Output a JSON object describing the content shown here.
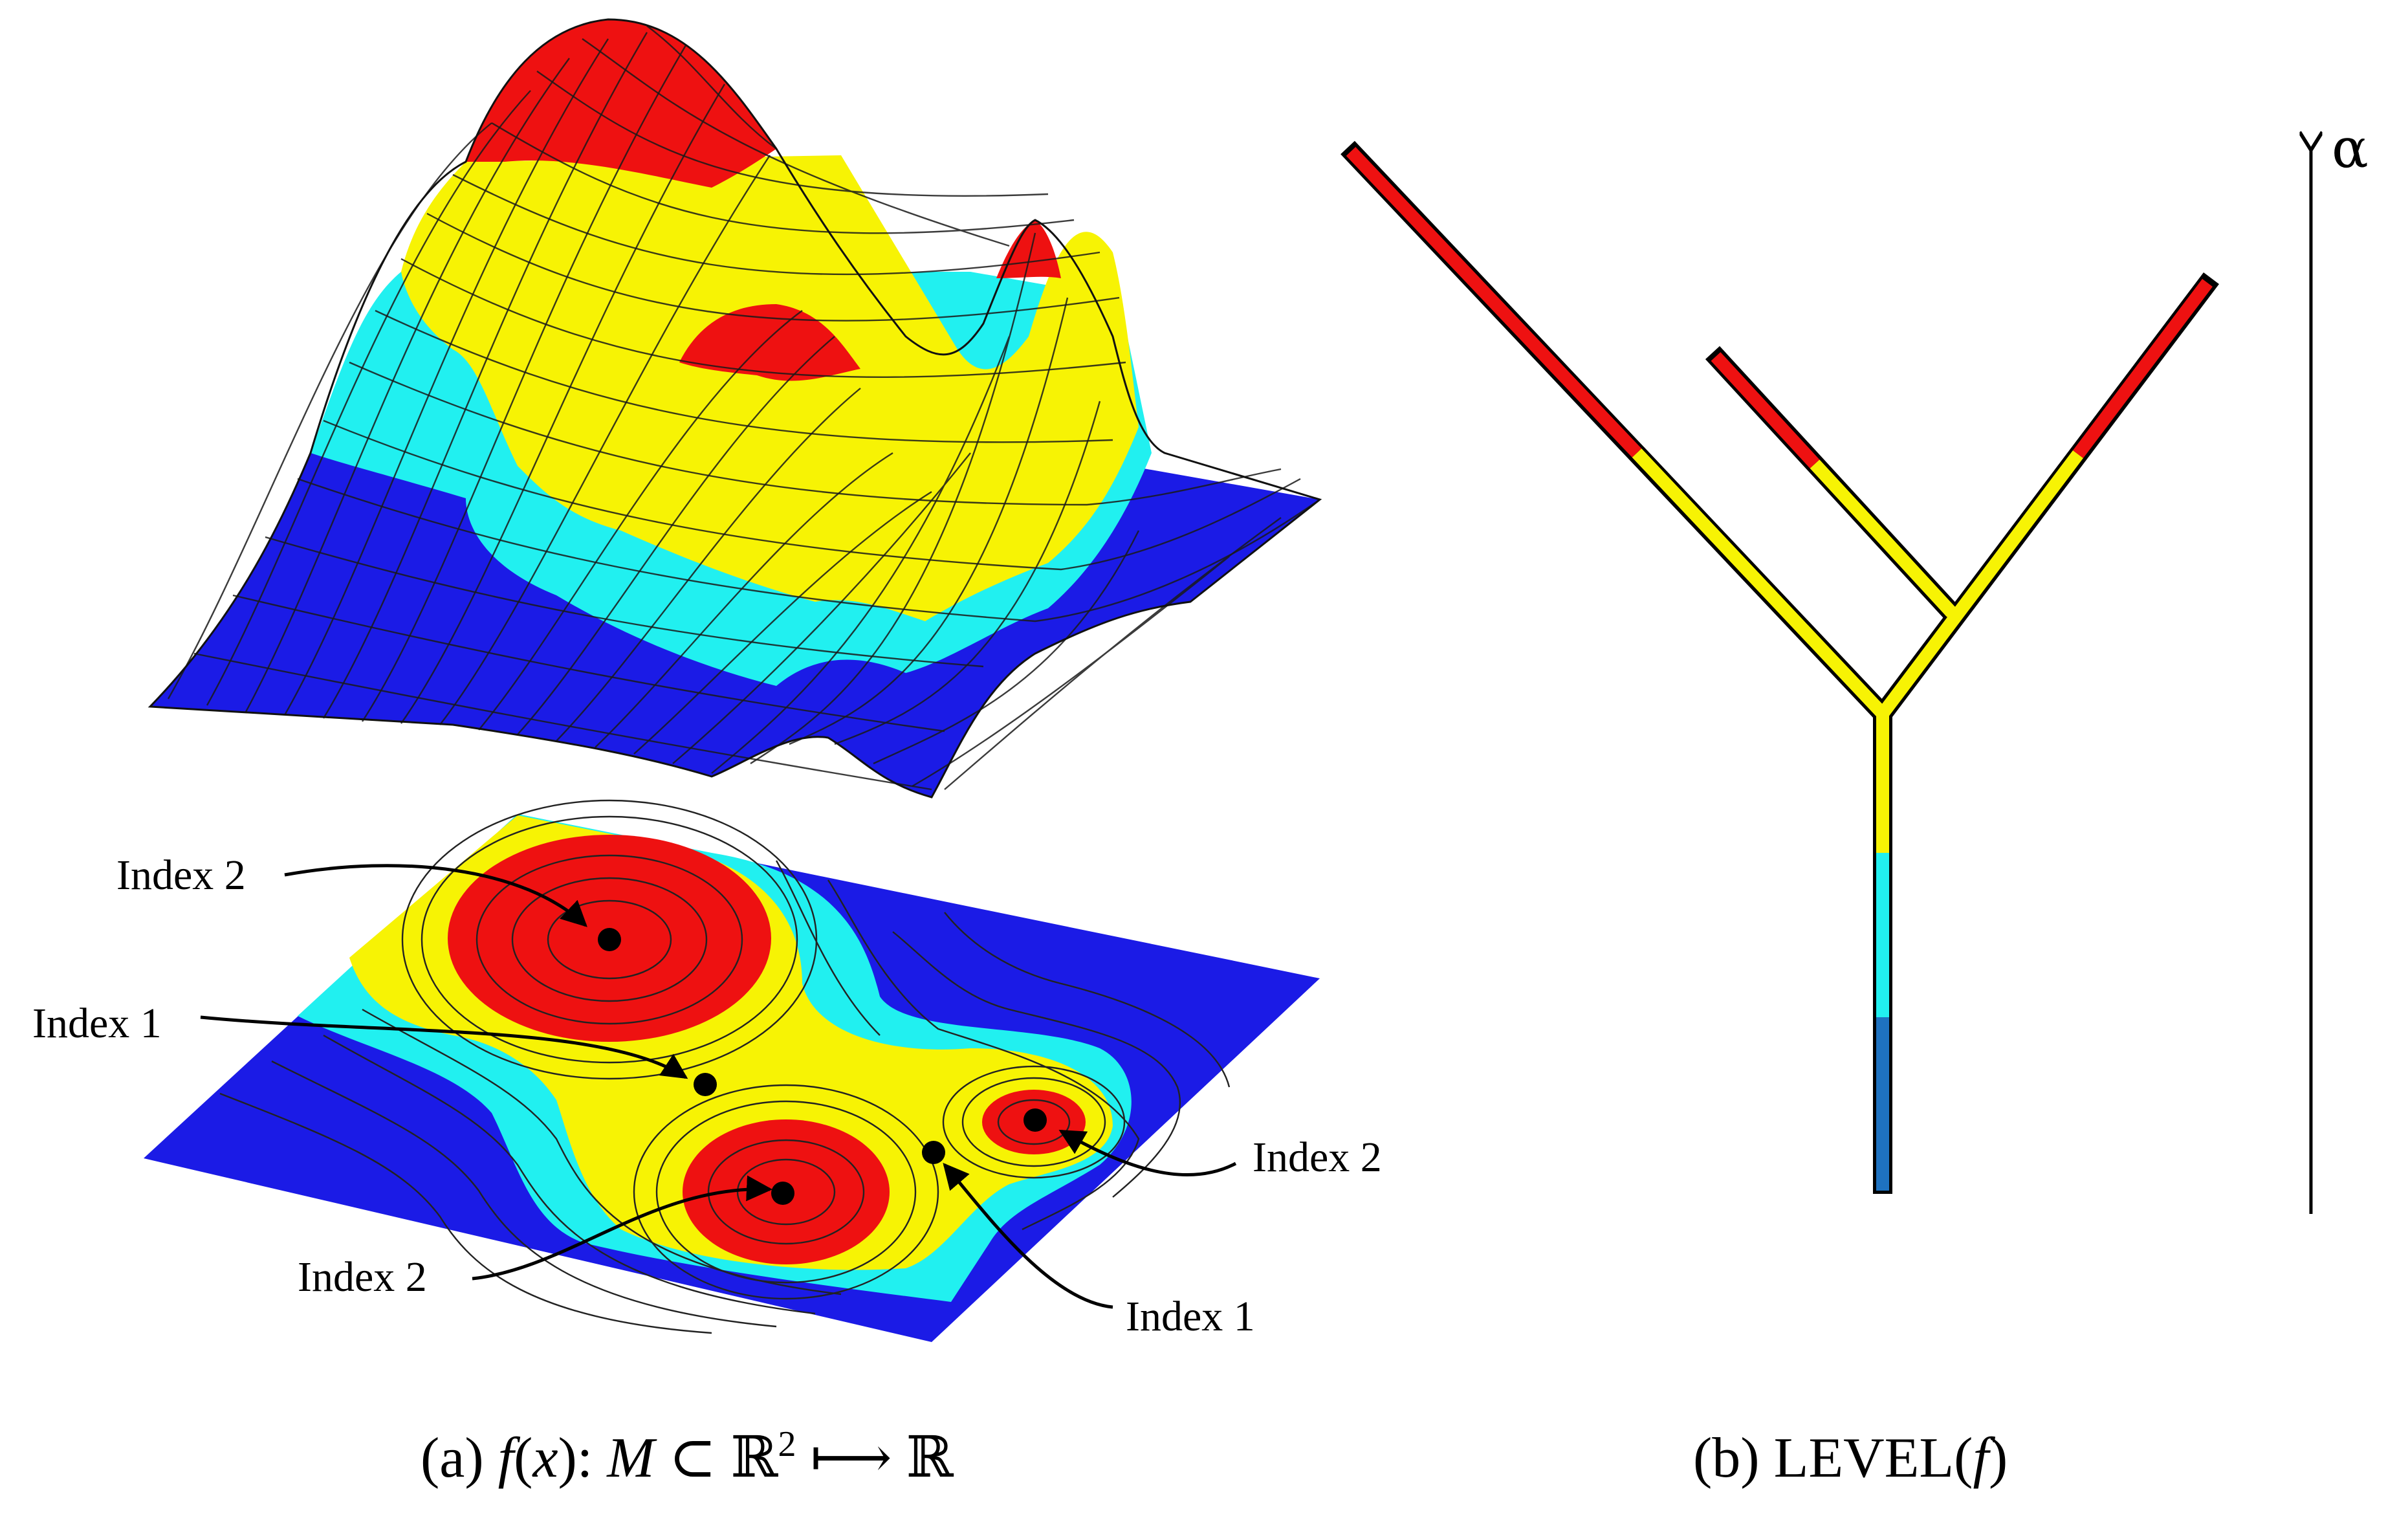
{
  "colors": {
    "red": "#ee1111",
    "yellow": "#f7f304",
    "cyan": "#21f0f0",
    "blue": "#1b1be6",
    "steel_blue": "#1e72c0",
    "mesh_line": "#1a1a1a",
    "contour_line": "#222222"
  },
  "surface_plot": {
    "color_bands": [
      "blue",
      "cyan",
      "yellow",
      "red"
    ],
    "peaks": [
      {
        "name": "Index 2",
        "type": "maximum"
      },
      {
        "name": "Index 2",
        "type": "maximum"
      },
      {
        "name": "Index 2",
        "type": "maximum"
      }
    ]
  },
  "contour_plot": {
    "labels": {
      "top_max": "Index 2",
      "left_saddle": "Index 1",
      "right_max": "Index 2",
      "bottom_max": "Index 2",
      "bottom_saddle": "Index 1"
    }
  },
  "tree": {
    "axis_label": "α",
    "branch_colors": [
      "steel_blue",
      "cyan",
      "yellow",
      "red"
    ]
  },
  "captions": {
    "left": "(a) f(x): M ⊂ ℝ² ⟼ ℝ",
    "left_parts": {
      "prefix": "(a) ",
      "f": "f",
      "x_open": "(",
      "x": "x",
      "x_close": "): ",
      "M": "M",
      "subset": " ⊂ ℝ",
      "sup": "2",
      "maps": " ⟼ ℝ"
    },
    "right": "(b) LEVEL(f)",
    "right_parts": {
      "prefix": "(b) LEVEL(",
      "f": "f",
      "suffix": ")"
    }
  }
}
